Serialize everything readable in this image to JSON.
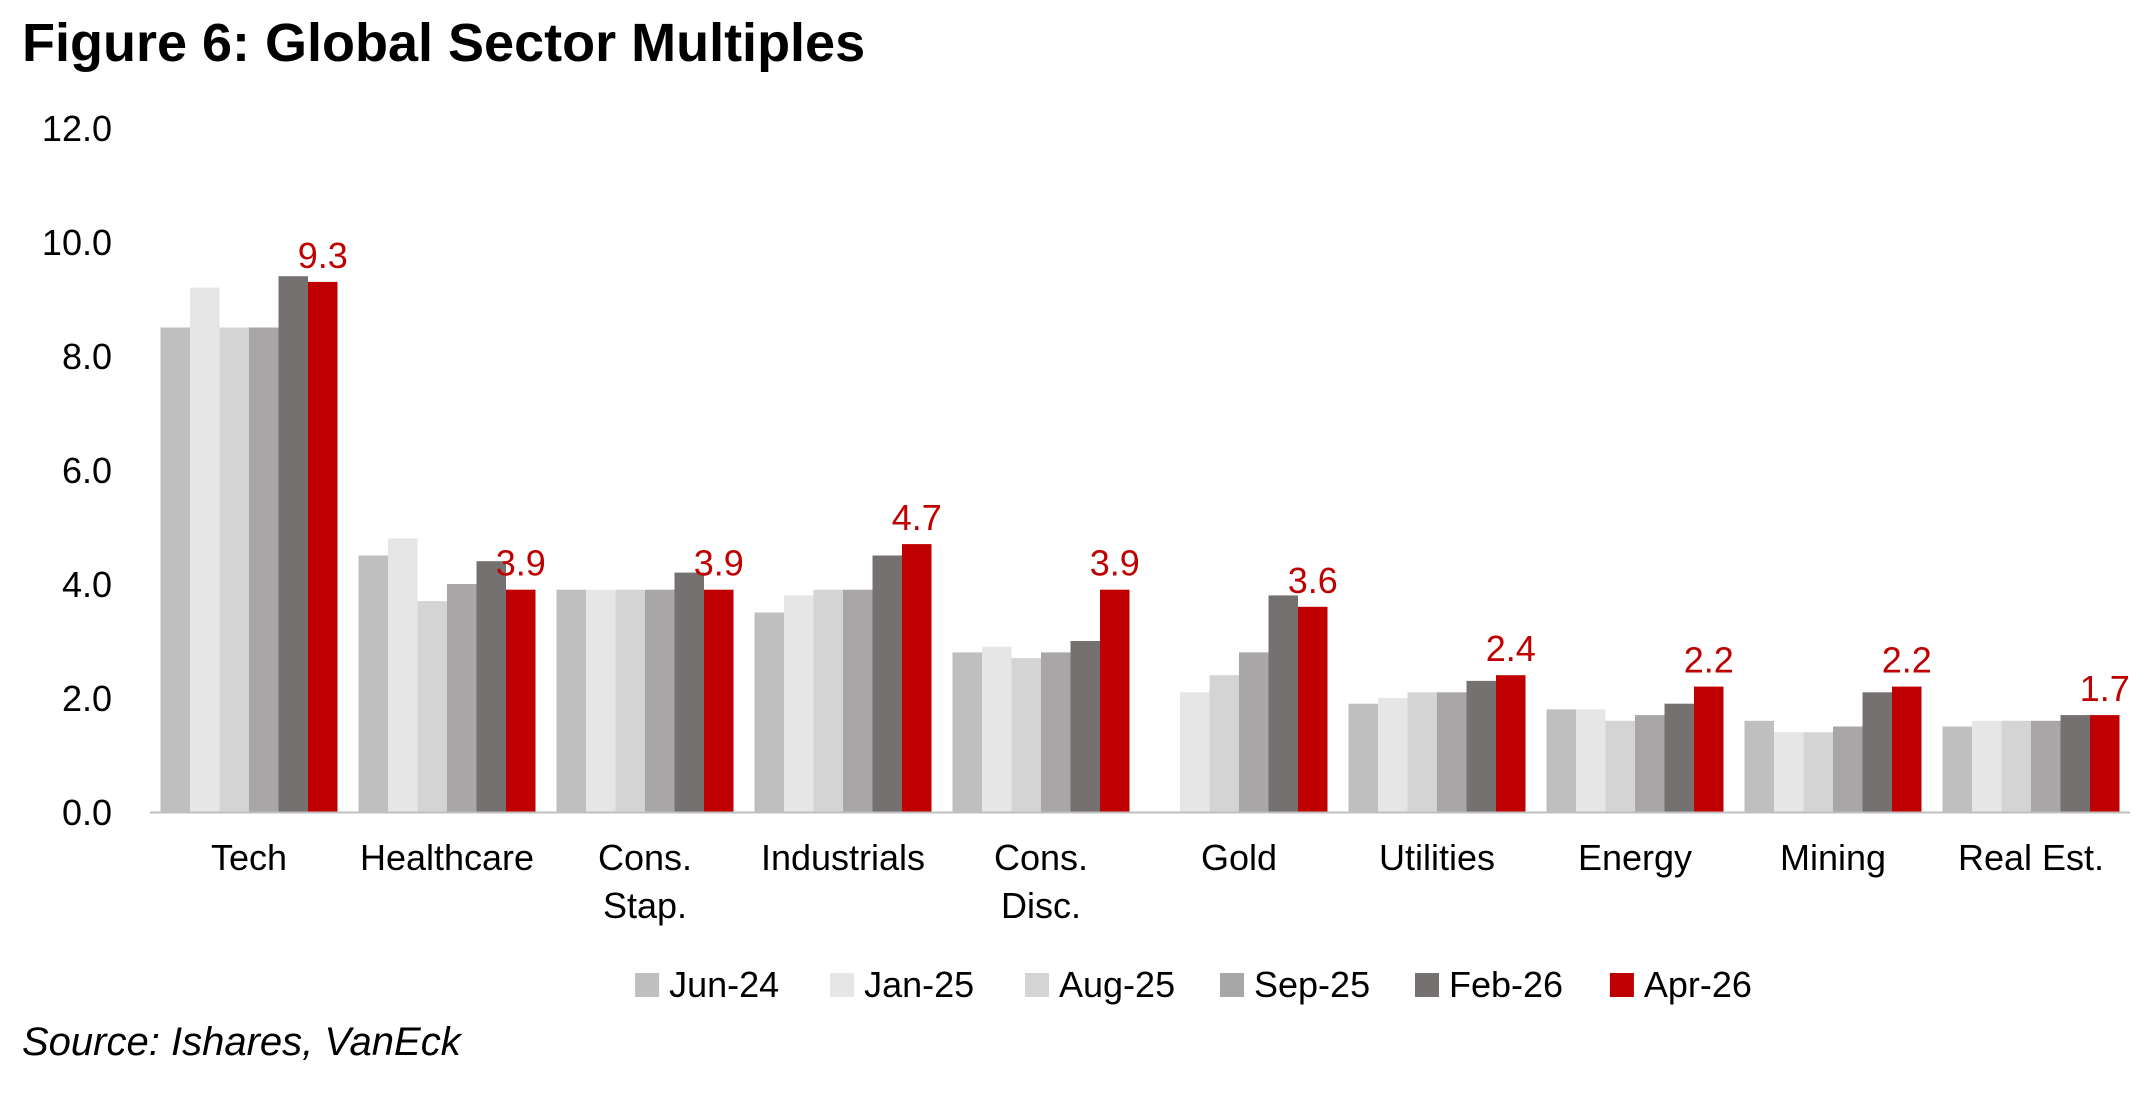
{
  "title": "Figure 6: Global Sector Multiples",
  "source": "Source: Ishares, VanEck",
  "chart_data": {
    "type": "bar",
    "title": "Figure 6: Global Sector Multiples",
    "xlabel": "",
    "ylabel": "",
    "ylim": [
      0,
      12
    ],
    "yticks": [
      "0.0",
      "2.0",
      "4.0",
      "6.0",
      "8.0",
      "10.0",
      "12.0"
    ],
    "grid": false,
    "legend_position": "bottom",
    "categories": [
      [
        "Tech"
      ],
      [
        "Healthcare"
      ],
      [
        "Cons.",
        "Stap."
      ],
      [
        "Industrials"
      ],
      [
        "Cons.",
        "Disc."
      ],
      [
        "Gold"
      ],
      [
        "Utilities"
      ],
      [
        "Energy"
      ],
      [
        "Mining"
      ],
      [
        "Real Est."
      ]
    ],
    "series": [
      {
        "name": "Jun-24",
        "color": "#bfbfbf",
        "values": [
          8.5,
          4.5,
          3.9,
          3.5,
          2.8,
          null,
          1.9,
          1.8,
          1.6,
          1.5
        ]
      },
      {
        "name": "Jan-25",
        "color": "#e6e6e6",
        "values": [
          9.2,
          4.8,
          3.9,
          3.8,
          2.9,
          2.1,
          2.0,
          1.8,
          1.4,
          1.6
        ]
      },
      {
        "name": "Aug-25",
        "color": "#d4d4d4",
        "values": [
          8.5,
          3.7,
          3.9,
          3.9,
          2.7,
          2.4,
          2.1,
          1.6,
          1.4,
          1.6
        ]
      },
      {
        "name": "Sep-25",
        "color": "#a8a6a6",
        "values": [
          8.5,
          4.0,
          3.9,
          3.9,
          2.8,
          2.8,
          2.1,
          1.7,
          1.5,
          1.6
        ]
      },
      {
        "name": "Feb-26",
        "color": "#757171",
        "values": [
          9.4,
          4.4,
          4.2,
          4.5,
          3.0,
          3.8,
          2.3,
          1.9,
          2.1,
          1.7
        ]
      },
      {
        "name": "Apr-26",
        "color": "#c00000",
        "values": [
          9.3,
          3.9,
          3.9,
          4.7,
          3.9,
          3.6,
          2.4,
          2.2,
          2.2,
          1.7
        ]
      }
    ],
    "data_labels": {
      "series": "Apr-26",
      "color": "#c00000",
      "labels": [
        "9.3",
        "3.9",
        "3.9",
        "4.7",
        "3.9",
        "3.6",
        "2.4",
        "2.2",
        "2.2",
        "1.7"
      ]
    }
  }
}
